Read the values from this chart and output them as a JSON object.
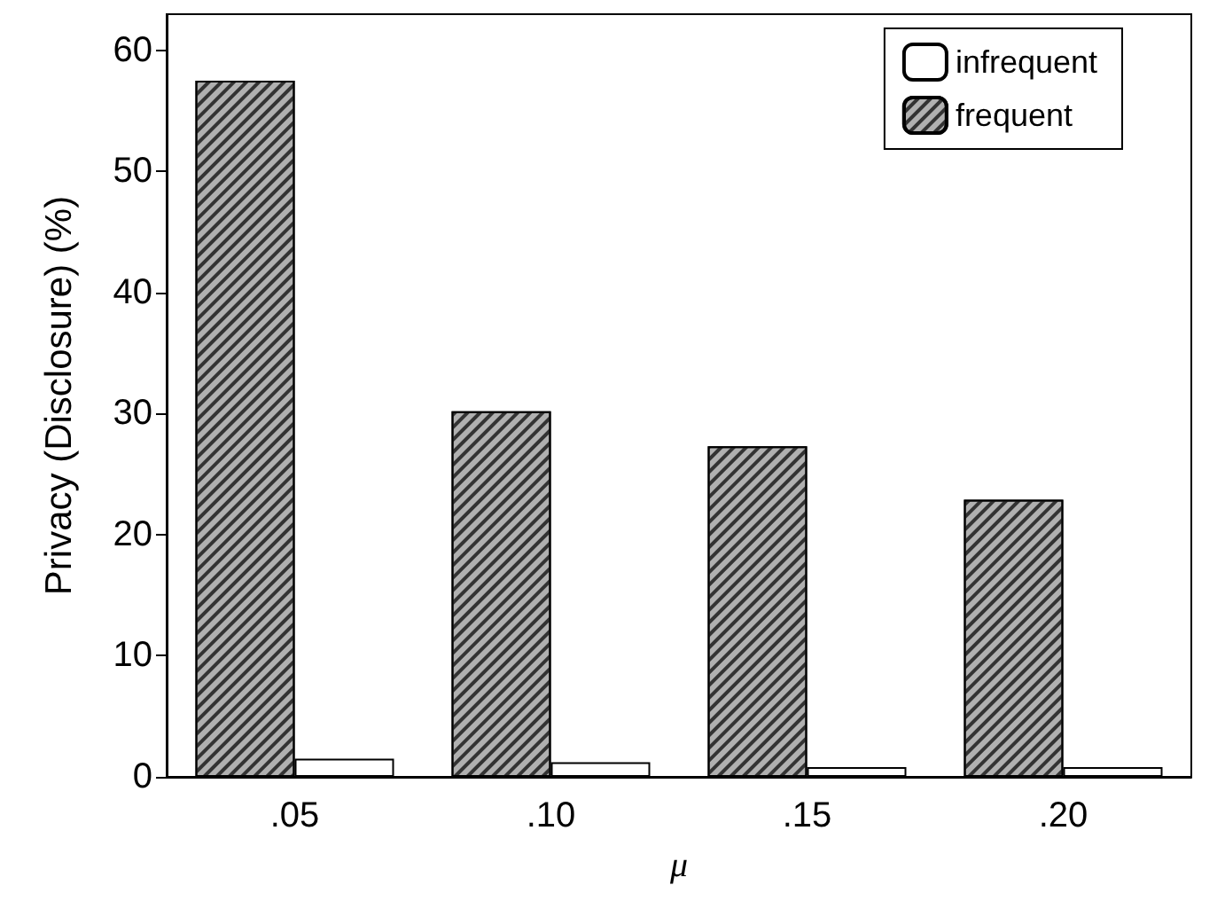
{
  "chart_data": {
    "type": "bar",
    "xlabel": "μ",
    "ylabel": "Privacy (Disclosure) (%)",
    "categories": [
      ".05",
      ".10",
      ".15",
      ".20"
    ],
    "series": [
      {
        "name": "frequent",
        "color": "#b0b0b0",
        "values": [
          57.5,
          30.2,
          27.3,
          22.9
        ]
      },
      {
        "name": "infrequent",
        "color": "#ffffff",
        "values": [
          1.5,
          1.2,
          0.8,
          0.8
        ]
      }
    ],
    "ylim": [
      0,
      63
    ],
    "yticks": [
      0,
      10,
      20,
      30,
      40,
      50,
      60
    ],
    "grid": false,
    "legend": "top right"
  }
}
